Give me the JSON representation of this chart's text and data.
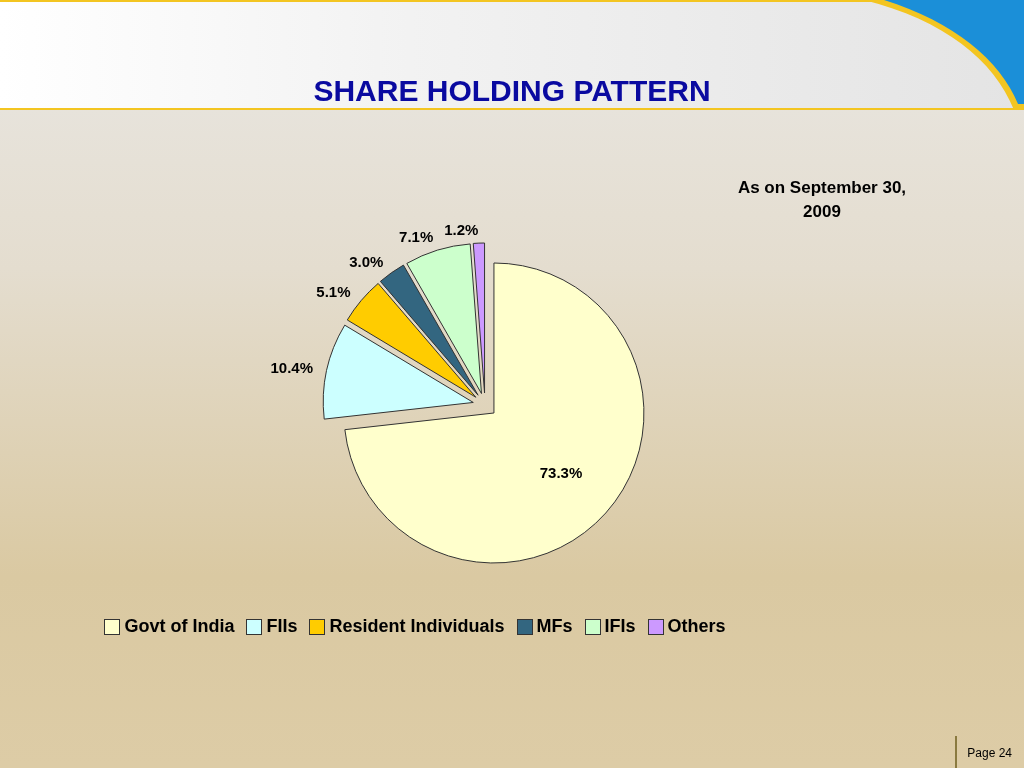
{
  "chart_data": {
    "type": "pie",
    "title": "SHARE HOLDING PATTERN",
    "subtitle": "As on September 30, 2009",
    "categories": [
      "Govt of India",
      "FIIs",
      "Resident Individuals",
      "MFs",
      "IFIs",
      "Others"
    ],
    "values": [
      73.3,
      10.4,
      5.1,
      3.0,
      7.1,
      1.2
    ],
    "colors": [
      "#ffffcc",
      "#ccffff",
      "#ffcc00",
      "#336680",
      "#ccffcc",
      "#cc99ff"
    ],
    "value_labels": [
      "73.3%",
      "10.4%",
      "5.1%",
      "3.0%",
      "7.1%",
      "1.2%"
    ],
    "legend": "bottom",
    "annotations": [
      "Page 24"
    ]
  }
}
